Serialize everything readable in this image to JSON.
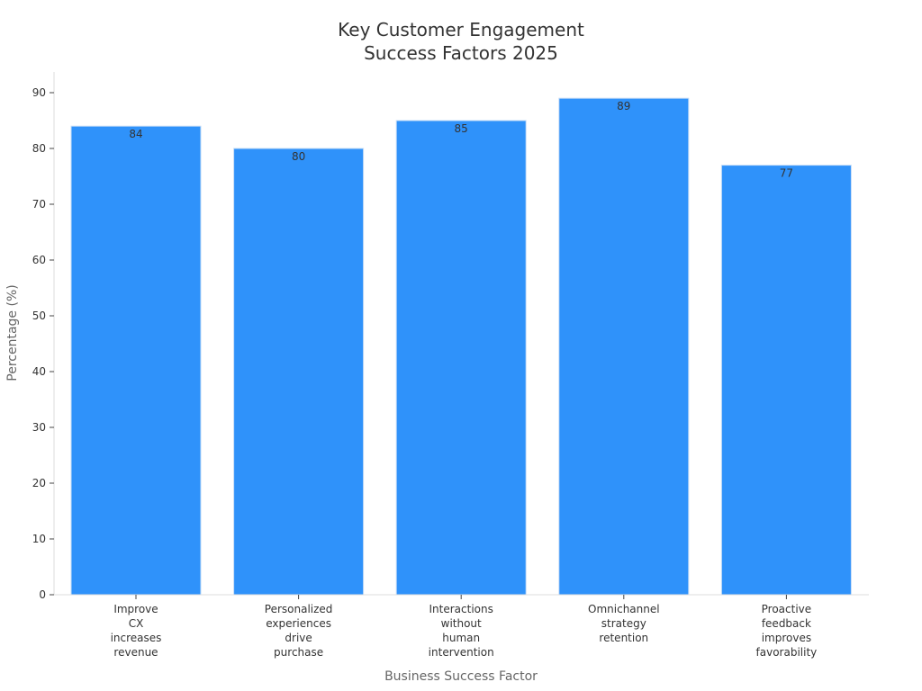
{
  "chart_data": {
    "type": "bar",
    "title": [
      "Key Customer Engagement",
      "Success Factors 2025"
    ],
    "xlabel": "Business Success Factor",
    "ylabel": "Percentage (%)",
    "ylim": [
      0,
      90
    ],
    "yticks": [
      0,
      10,
      20,
      30,
      40,
      50,
      60,
      70,
      80,
      90
    ],
    "categories": [
      [
        "Improve",
        "CX",
        "increases",
        "revenue"
      ],
      [
        "Personalized",
        "experiences",
        "drive",
        "purchase"
      ],
      [
        "Interactions",
        "without",
        "human",
        "intervention"
      ],
      [
        "Omnichannel",
        "strategy",
        "retention"
      ],
      [
        "Proactive",
        "feedback",
        "improves",
        "favorability"
      ]
    ],
    "values": [
      84,
      80,
      85,
      89,
      77
    ],
    "data_labels": [
      "84",
      "80",
      "85",
      "89",
      "77"
    ],
    "bar_color": "#2f92fa",
    "bar_edge_color": "#c6ddf7",
    "grid": false,
    "legend": "none"
  }
}
